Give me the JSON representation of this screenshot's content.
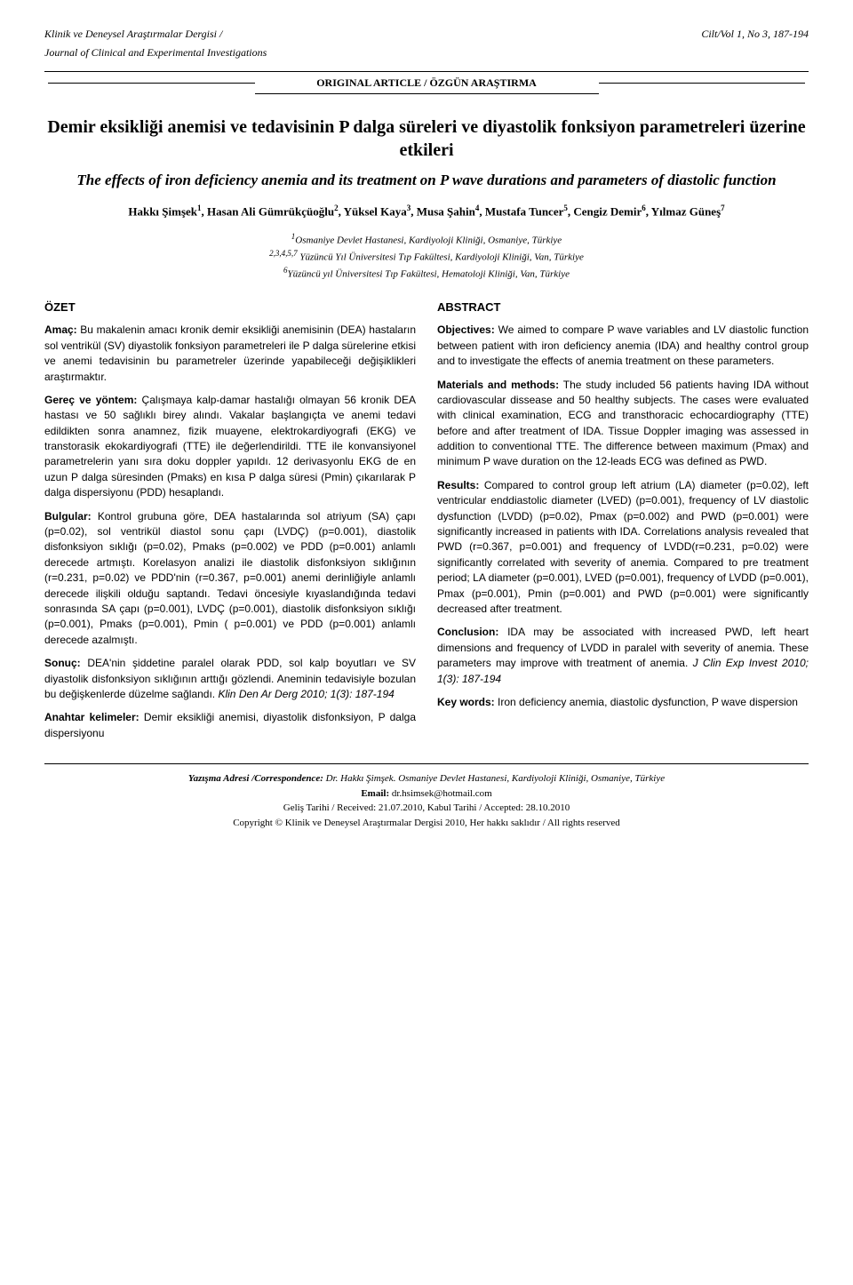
{
  "journal": {
    "title_tr": "Klinik ve Deneysel Araştırmalar Dergisi /",
    "title_en": "Journal of Clinical and Experimental Investigations",
    "volume": "Cilt/Vol 1, No 3, 187-194"
  },
  "article_type": "ORIGINAL ARTICLE / ÖZGÜN ARAŞTIRMA",
  "title_tr": "Demir eksikliği anemisi ve tedavisinin P dalga süreleri ve diyastolik fonksiyon parametreleri üzerine etkileri",
  "title_en": "The effects of iron deficiency anemia and its treatment on P wave durations and parameters of diastolic function",
  "authors_html": "Hakkı Şimşek<span class='sup'>1</span>, Hasan Ali Gümrükçüoğlu<span class='sup'>2</span>, Yüksel Kaya<span class='sup'>3</span>, Musa Şahin<span class='sup'>4</span>, Mustafa Tuncer<span class='sup'>5</span>, Cengiz Demir<span class='sup'>6</span>, Yılmaz Güneş<span class='sup'>7</span>",
  "affiliations_html": "<span class='sup'>1</span>Osmaniye Devlet Hastanesi, Kardiyoloji Kliniği, Osmaniye, Türkiye<br><span class='sup'>2,3,4,5,7</span> Yüzüncü Yıl Üniversitesi Tıp Fakültesi, Kardiyoloji Kliniği, Van, Türkiye<br><span class='sup'>6</span>Yüzüncü yıl Üniversitesi Tıp Fakültesi, Hematoloji Kliniği, Van, Türkiye",
  "ozet": {
    "heading": "ÖZET",
    "amac_label": "Amaç:",
    "amac": " Bu makalenin amacı kronik demir eksikliği anemisinin (DEA) hastaların sol ventrikül (SV) diyastolik fonksiyon parametreleri ile P dalga sürelerine etkisi ve anemi tedavisinin bu parametreler üzerinde yapabileceği değişiklikleri araştırmaktır.",
    "gerec_label": "Gereç ve yöntem:",
    "gerec": " Çalışmaya kalp-damar hastalığı olmayan 56 kronik DEA hastası ve 50 sağlıklı birey alındı. Vakalar başlangıçta ve anemi tedavi edildikten sonra anamnez, fizik muayene, elektrokardiyografi (EKG) ve transtorasik ekokardiyografi (TTE) ile değerlendirildi. TTE ile konvansiyonel parametrelerin yanı sıra doku doppler yapıldı. 12 derivasyonlu EKG de en uzun P dalga süresinden (Pmaks) en kısa P dalga süresi (Pmin) çıkarılarak P dalga dispersiyonu (PDD) hesaplandı.",
    "bulgular_label": "Bulgular:",
    "bulgular": " Kontrol grubuna göre, DEA hastalarında sol atriyum (SA) çapı (p=0.02), sol ventrikül diastol sonu çapı (LVDÇ) (p=0.001), diastolik disfonksiyon sıklığı (p=0.02), Pmaks (p=0.002) ve PDD (p=0.001) anlamlı derecede artmıştı. Korelasyon analizi ile diastolik disfonksiyon sıklığının (r=0.231, p=0.02) ve PDD'nin (r=0.367, p=0.001) anemi derinliğiyle anlamlı derecede ilişkili olduğu saptandı. Tedavi öncesiyle kıyaslandığında tedavi sonrasında SA çapı (p=0.001), LVDÇ (p=0.001), diastolik disfonksiyon sıklığı (p=0.001), Pmaks (p=0.001), Pmin ( p=0.001) ve PDD (p=0.001) anlamlı derecede azalmıştı.",
    "sonuc_label": "Sonuç:",
    "sonuc_html": " DEA'nin şiddetine paralel olarak PDD, sol kalp boyutları ve SV diyastolik disfonksiyon sıklığının arttığı gözlendi. Aneminin tedavisiyle bozulan bu değişkenlerde düzelme sağlandı. <span class='ref-it'>Klin Den Ar Derg 2010; 1(3): 187-194</span>",
    "anahtar_label": "Anahtar kelimeler:",
    "anahtar": " Demir eksikliği anemisi, diyastolik disfonksiyon, P dalga dispersiyonu"
  },
  "abstract": {
    "heading": "ABSTRACT",
    "obj_label": "Objectives:",
    "obj": " We aimed to compare P wave variables and LV diastolic function between patient with iron deficiency anemia (IDA) and healthy control group and to investigate the effects of anemia treatment on these parameters.",
    "mat_label": "Materials and methods:",
    "mat": " The study included 56 patients having IDA without cardiovascular dissease and 50 healthy subjects. The cases were evaluated with clinical examination, ECG and transthoracic echocardiography (TTE) before and after treatment of IDA. Tissue Doppler imaging was assessed in addition to conventional TTE. The difference between maximum (Pmax) and minimum P wave duration on the 12-leads ECG was defined as PWD.",
    "res_label": "Results:",
    "res": " Compared to control group left atrium (LA) diameter (p=0.02), left ventricular enddiastolic diameter (LVED) (p=0.001), frequency of LV diastolic dysfunction (LVDD) (p=0.02), Pmax (p=0.002) and PWD (p=0.001) were significantly increased in patients with IDA. Correlations analysis revealed that PWD (r=0.367, p=0.001) and frequency of LVDD(r=0.231, p=0.02) were significantly correlated with severity of anemia. Compared to pre treatment period; LA diameter (p=0.001), LVED (p=0.001), frequency of LVDD (p=0.001), Pmax (p=0.001), Pmin (p=0.001) and PWD (p=0.001) were significantly decreased after treatment.",
    "con_label": "Conclusion:",
    "con_html": " IDA may be associated with increased PWD, left heart dimensions and frequency of LVDD in paralel with severity of anemia. These parameters may improve with treatment of anemia. <span class='ref-it'>J Clin Exp Invest 2010; 1(3): 187-194</span>",
    "key_label": "Key words:",
    "key": " Iron deficiency anemia, diastolic dysfunction, P wave dispersion"
  },
  "footer": {
    "corr_label": "Yazışma Adresi /Correspondence:",
    "corr": " Dr. Hakkı Şimşek. Osmaniye Devlet Hastanesi, Kardiyoloji Kliniği, Osmaniye, Türkiye",
    "email_label": "Email:",
    "email": " dr.hsimsek@hotmail.com",
    "dates": "Geliş Tarihi / Received: 21.07.2010, Kabul Tarihi / Accepted: 28.10.2010",
    "copyright": "Copyright © Klinik ve Deneysel Araştırmalar Dergisi 2010, Her hakkı saklıdır / All rights reserved"
  }
}
